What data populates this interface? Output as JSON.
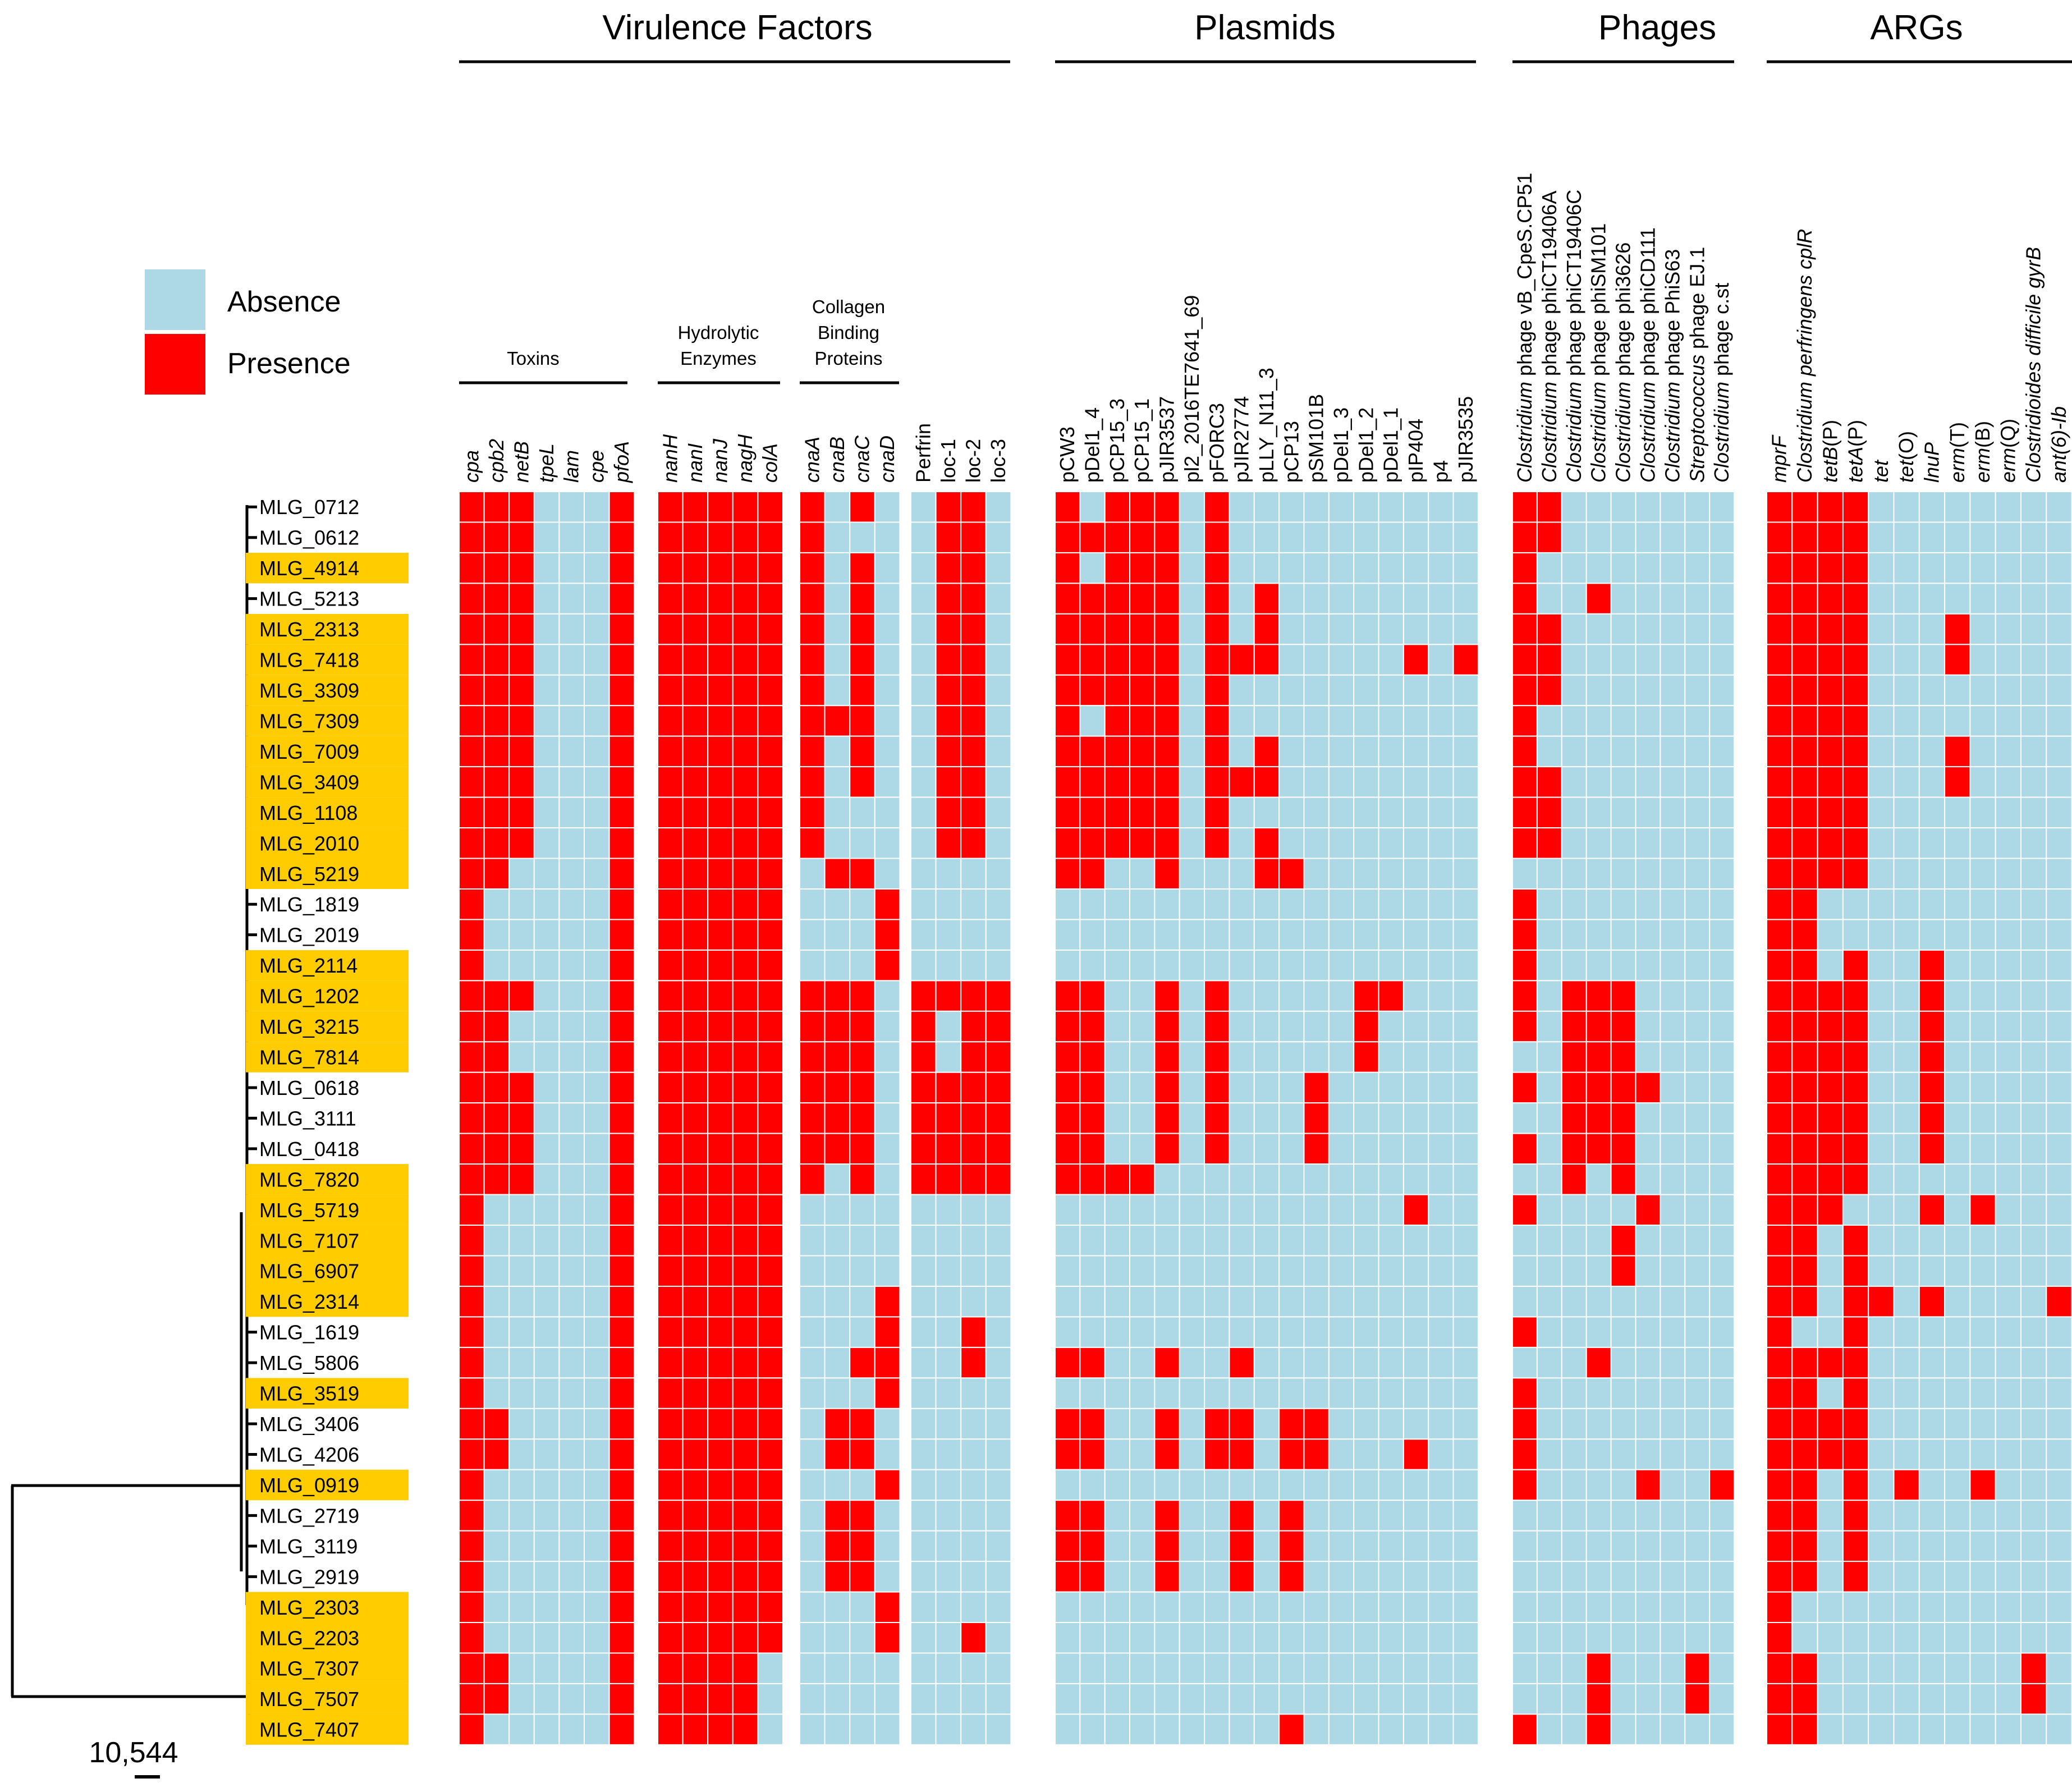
{
  "legend": {
    "absence_label": "Absence",
    "presence_label": "Presence",
    "absence_color": "#add8e6",
    "presence_color": "#ff0000"
  },
  "highlight_color": "#ffcc00",
  "scale_label": "10,544",
  "groups": [
    "Virulence Factors",
    "Plasmids",
    "Phages",
    "ARGs"
  ],
  "subgroups": [
    {
      "lines": [
        "Toxins"
      ]
    },
    {
      "lines": [
        "Hydrolytic",
        "Enzymes"
      ]
    },
    {
      "lines": [
        "Collagen",
        "Binding",
        "Proteins"
      ]
    }
  ],
  "blocks": [
    {
      "columns": [
        [
          {
            "t": "cpa",
            "i": true
          }
        ],
        [
          {
            "t": "cpb2",
            "i": true
          }
        ],
        [
          {
            "t": "netB",
            "i": true
          }
        ],
        [
          {
            "t": "tpeL",
            "i": true
          }
        ],
        [
          {
            "t": "lam",
            "i": true
          }
        ],
        [
          {
            "t": "cpe",
            "i": true
          }
        ],
        [
          {
            "t": "pfoA",
            "i": true
          }
        ]
      ]
    },
    {
      "columns": [
        [
          {
            "t": "nanH",
            "i": true
          }
        ],
        [
          {
            "t": "nanI",
            "i": true
          }
        ],
        [
          {
            "t": "nanJ",
            "i": true
          }
        ],
        [
          {
            "t": "nagH",
            "i": true
          }
        ],
        [
          {
            "t": "colA",
            "i": true
          }
        ]
      ]
    },
    {
      "columns": [
        [
          {
            "t": "cnaA",
            "i": true
          }
        ],
        [
          {
            "t": "cnaB",
            "i": true
          }
        ],
        [
          {
            "t": "cnaC",
            "i": true
          }
        ],
        [
          {
            "t": "cnaD",
            "i": true
          }
        ]
      ]
    },
    {
      "columns": [
        [
          {
            "t": "Perfrin",
            "i": false
          }
        ],
        [
          {
            "t": "loc-1",
            "i": false
          }
        ],
        [
          {
            "t": "loc-2",
            "i": false
          }
        ],
        [
          {
            "t": "loc-3",
            "i": false
          }
        ]
      ]
    },
    {
      "columns": [
        [
          {
            "t": "pCW3",
            "i": false
          }
        ],
        [
          {
            "t": "pDel1_4",
            "i": false
          }
        ],
        [
          {
            "t": "pCP15_3",
            "i": false
          }
        ],
        [
          {
            "t": "pCP15_1",
            "i": false
          }
        ],
        [
          {
            "t": "pJIR3537",
            "i": false
          }
        ],
        [
          {
            "t": "pl2_2016TE7641_69",
            "i": false
          }
        ],
        [
          {
            "t": "pFORC3",
            "i": false
          }
        ],
        [
          {
            "t": "pJIR2774",
            "i": false
          }
        ],
        [
          {
            "t": "pLLY_N11_3",
            "i": false
          }
        ],
        [
          {
            "t": "pCP13",
            "i": false
          }
        ],
        [
          {
            "t": "pSM101B",
            "i": false
          }
        ],
        [
          {
            "t": "pDel1_3",
            "i": false
          }
        ],
        [
          {
            "t": "pDel1_2",
            "i": false
          }
        ],
        [
          {
            "t": "pDel1_1",
            "i": false
          }
        ],
        [
          {
            "t": "pIP404",
            "i": false
          }
        ],
        [
          {
            "t": "p4",
            "i": false
          }
        ],
        [
          {
            "t": "pJIR3535",
            "i": false
          }
        ]
      ]
    },
    {
      "columns": [
        [
          {
            "t": "Clostridium",
            "i": true
          },
          {
            "t": " phage vB_CpeS.CP51",
            "i": false
          }
        ],
        [
          {
            "t": "Clostridium",
            "i": true
          },
          {
            "t": " phage phiCT19406A",
            "i": false
          }
        ],
        [
          {
            "t": "Clostridium",
            "i": true
          },
          {
            "t": " phage phiCT19406C",
            "i": false
          }
        ],
        [
          {
            "t": "Clostridium",
            "i": true
          },
          {
            "t": " phage phiSM101",
            "i": false
          }
        ],
        [
          {
            "t": "Clostridium",
            "i": true
          },
          {
            "t": " phage phi3626",
            "i": false
          }
        ],
        [
          {
            "t": "Clostridium",
            "i": true
          },
          {
            "t": " phage phiCD111",
            "i": false
          }
        ],
        [
          {
            "t": "Clostridium",
            "i": true
          },
          {
            "t": " phage PhiS63",
            "i": false
          }
        ],
        [
          {
            "t": "Streptococcus",
            "i": true
          },
          {
            "t": " phage EJ.1",
            "i": false
          }
        ],
        [
          {
            "t": "Clostridium",
            "i": true
          },
          {
            "t": " phage c.st",
            "i": false
          }
        ]
      ]
    },
    {
      "columns": [
        [
          {
            "t": "mprF",
            "i": true
          }
        ],
        [
          {
            "t": "Clostridium perfringens cplR",
            "i": true
          }
        ],
        [
          {
            "t": "tetB",
            "i": true
          },
          {
            "t": "(P)",
            "i": false
          }
        ],
        [
          {
            "t": "tetA",
            "i": true
          },
          {
            "t": "(P)",
            "i": false
          }
        ],
        [
          {
            "t": "tet",
            "i": true
          }
        ],
        [
          {
            "t": "tet",
            "i": true
          },
          {
            "t": "(O)",
            "i": false
          }
        ],
        [
          {
            "t": "lnuP",
            "i": true
          }
        ],
        [
          {
            "t": "erm",
            "i": true
          },
          {
            "t": "(T)",
            "i": false
          }
        ],
        [
          {
            "t": "erm",
            "i": true
          },
          {
            "t": "(B)",
            "i": false
          }
        ],
        [
          {
            "t": "erm",
            "i": true
          },
          {
            "t": "(Q)",
            "i": false
          }
        ],
        [
          {
            "t": "Clostridioides difficile gyrB",
            "i": true
          }
        ],
        [
          {
            "t": "ant(6)-Ib",
            "i": true
          }
        ]
      ]
    }
  ],
  "chart_data": {
    "type": "heatmap",
    "value_encoding": {
      "0": "Absence",
      "1": "Presence"
    },
    "highlighted_rows": [
      "MLG_4914",
      "MLG_2313",
      "MLG_7418",
      "MLG_3309",
      "MLG_7309",
      "MLG_7009",
      "MLG_3409",
      "MLG_1108",
      "MLG_2010",
      "MLG_5219",
      "MLG_2114",
      "MLG_1202",
      "MLG_3215",
      "MLG_7814",
      "MLG_7820",
      "MLG_5719",
      "MLG_7107",
      "MLG_6907",
      "MLG_2314",
      "MLG_3519",
      "MLG_0919",
      "MLG_2303",
      "MLG_2203",
      "MLG_7307",
      "MLG_7507",
      "MLG_7407"
    ],
    "rows": [
      {
        "label": "MLG_0712",
        "blocks": [
          "1110001",
          "11111",
          "1010",
          "0110",
          "10111010000000000",
          "110000000",
          "111100000000"
        ]
      },
      {
        "label": "MLG_0612",
        "blocks": [
          "1110001",
          "11111",
          "1000",
          "0110",
          "11111010000000000",
          "110000000",
          "111100000000"
        ]
      },
      {
        "label": "MLG_4914",
        "blocks": [
          "1110001",
          "11111",
          "1010",
          "0110",
          "10111010000000000",
          "100000000",
          "111100000000"
        ]
      },
      {
        "label": "MLG_5213",
        "blocks": [
          "1110001",
          "11111",
          "1010",
          "0110",
          "11111010100000000",
          "100100000",
          "111100000000"
        ]
      },
      {
        "label": "MLG_2313",
        "blocks": [
          "1110001",
          "11111",
          "1010",
          "0110",
          "11111010100000000",
          "110000000",
          "111100010000"
        ]
      },
      {
        "label": "MLG_7418",
        "blocks": [
          "1110001",
          "11111",
          "1010",
          "0110",
          "11111011100000101",
          "110000000",
          "111100010000"
        ]
      },
      {
        "label": "MLG_3309",
        "blocks": [
          "1110001",
          "11111",
          "1010",
          "0110",
          "11111010000000000",
          "110000000",
          "111100000000"
        ]
      },
      {
        "label": "MLG_7309",
        "blocks": [
          "1110001",
          "11111",
          "1110",
          "0110",
          "10111010000000000",
          "100000000",
          "111100000000"
        ]
      },
      {
        "label": "MLG_7009",
        "blocks": [
          "1110001",
          "11111",
          "1010",
          "0110",
          "11111010100000000",
          "100000000",
          "111100010000"
        ]
      },
      {
        "label": "MLG_3409",
        "blocks": [
          "1110001",
          "11111",
          "1010",
          "0110",
          "11111011100000000",
          "110000000",
          "111100010000"
        ]
      },
      {
        "label": "MLG_1108",
        "blocks": [
          "1110001",
          "11111",
          "1000",
          "0110",
          "11111010000000000",
          "110000000",
          "111100000000"
        ]
      },
      {
        "label": "MLG_2010",
        "blocks": [
          "1110001",
          "11111",
          "1000",
          "0110",
          "11111010100000000",
          "110000000",
          "111100000000"
        ]
      },
      {
        "label": "MLG_5219",
        "blocks": [
          "1100001",
          "11111",
          "0110",
          "0000",
          "11001000110000000",
          "000000000",
          "111100000000"
        ]
      },
      {
        "label": "MLG_1819",
        "blocks": [
          "1000001",
          "11111",
          "0001",
          "0000",
          "00000000000000000",
          "100000000",
          "110000000000"
        ]
      },
      {
        "label": "MLG_2019",
        "blocks": [
          "1000001",
          "11111",
          "0001",
          "0000",
          "00000000000000000",
          "100000000",
          "110000000000"
        ]
      },
      {
        "label": "MLG_2114",
        "blocks": [
          "1000001",
          "11111",
          "0001",
          "0000",
          "00000000000000000",
          "100000000",
          "110100100000"
        ]
      },
      {
        "label": "MLG_1202",
        "blocks": [
          "1110001",
          "11111",
          "1110",
          "1111",
          "11001010000011000",
          "101110000",
          "111100100000"
        ]
      },
      {
        "label": "MLG_3215",
        "blocks": [
          "1100001",
          "11111",
          "1110",
          "1011",
          "11001010000010000",
          "101110000",
          "111100100000"
        ]
      },
      {
        "label": "MLG_7814",
        "blocks": [
          "1100001",
          "11111",
          "1110",
          "1011",
          "11001010000010000",
          "001110000",
          "111100100000"
        ]
      },
      {
        "label": "MLG_0618",
        "blocks": [
          "1110001",
          "11111",
          "1110",
          "1111",
          "11001010001000000",
          "101111000",
          "111100100000"
        ]
      },
      {
        "label": "MLG_3111",
        "blocks": [
          "1110001",
          "11111",
          "1110",
          "1111",
          "11001010001000000",
          "001110000",
          "111100100000"
        ]
      },
      {
        "label": "MLG_0418",
        "blocks": [
          "1110001",
          "11111",
          "1110",
          "1111",
          "11001010001000000",
          "101110000",
          "111100100000"
        ]
      },
      {
        "label": "MLG_7820",
        "blocks": [
          "1110001",
          "11111",
          "1010",
          "1111",
          "11110000000000000",
          "001010000",
          "111100000000"
        ]
      },
      {
        "label": "MLG_5719",
        "blocks": [
          "1000001",
          "11111",
          "0000",
          "0000",
          "00000000000000100",
          "100001000",
          "111000101000"
        ]
      },
      {
        "label": "MLG_7107",
        "blocks": [
          "1000001",
          "11111",
          "0000",
          "0000",
          "00000000000000000",
          "000010000",
          "110100000000"
        ]
      },
      {
        "label": "MLG_6907",
        "blocks": [
          "1000001",
          "11111",
          "0000",
          "0000",
          "00000000000000000",
          "000010000",
          "110100000000"
        ]
      },
      {
        "label": "MLG_2314",
        "blocks": [
          "1000001",
          "11111",
          "0001",
          "0000",
          "00000000000000000",
          "000000000",
          "110110100001"
        ]
      },
      {
        "label": "MLG_1619",
        "blocks": [
          "1000001",
          "11111",
          "0001",
          "0010",
          "00000000000000000",
          "100000000",
          "100100000000"
        ]
      },
      {
        "label": "MLG_5806",
        "blocks": [
          "1000001",
          "11111",
          "0011",
          "0010",
          "11001001000000000",
          "000100000",
          "111100000000"
        ]
      },
      {
        "label": "MLG_3519",
        "blocks": [
          "1000001",
          "11111",
          "0001",
          "0000",
          "00000000000000000",
          "100000000",
          "110100000000"
        ]
      },
      {
        "label": "MLG_3406",
        "blocks": [
          "1100001",
          "11111",
          "0110",
          "0000",
          "11001011011000000",
          "100000000",
          "111100000000"
        ]
      },
      {
        "label": "MLG_4206",
        "blocks": [
          "1100001",
          "11111",
          "0110",
          "0000",
          "11001011011000100",
          "100000000",
          "111100000000"
        ]
      },
      {
        "label": "MLG_0919",
        "blocks": [
          "1000001",
          "11111",
          "0001",
          "0000",
          "00000000000000000",
          "100001001",
          "110101001000"
        ]
      },
      {
        "label": "MLG_2719",
        "blocks": [
          "1000001",
          "11111",
          "0110",
          "0000",
          "11001001010000000",
          "000000000",
          "110100000000"
        ]
      },
      {
        "label": "MLG_3119",
        "blocks": [
          "1000001",
          "11111",
          "0110",
          "0000",
          "11001001010000000",
          "000000000",
          "110100000000"
        ]
      },
      {
        "label": "MLG_2919",
        "blocks": [
          "1000001",
          "11111",
          "0110",
          "0000",
          "11001001010000000",
          "000000000",
          "110100000000"
        ]
      },
      {
        "label": "MLG_2303",
        "blocks": [
          "1000001",
          "11111",
          "0001",
          "0000",
          "00000000000000000",
          "000000000",
          "100000000000"
        ]
      },
      {
        "label": "MLG_2203",
        "blocks": [
          "1000001",
          "11111",
          "0001",
          "0010",
          "00000000000000000",
          "000000000",
          "100000000000"
        ]
      },
      {
        "label": "MLG_7307",
        "blocks": [
          "1100001",
          "11110",
          "0000",
          "0000",
          "00000000000000000",
          "000100010",
          "110000000010"
        ]
      },
      {
        "label": "MLG_7507",
        "blocks": [
          "1100001",
          "11110",
          "0000",
          "0000",
          "00000000000000000",
          "000100010",
          "110000000010"
        ]
      },
      {
        "label": "MLG_7407",
        "blocks": [
          "1000001",
          "11110",
          "0000",
          "0000",
          "00000000010000000",
          "100100000",
          "110000000000"
        ]
      }
    ]
  }
}
